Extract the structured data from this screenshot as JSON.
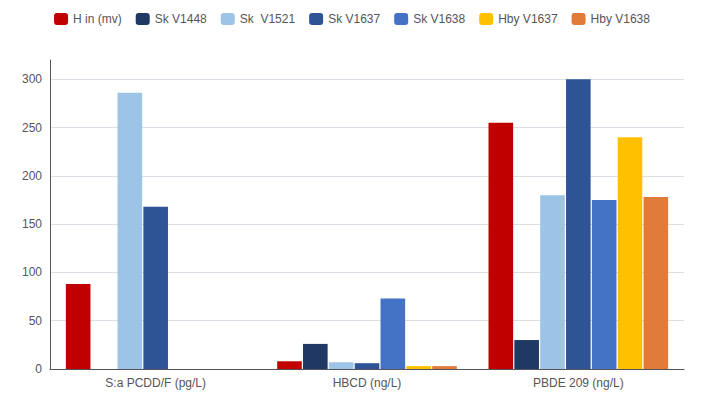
{
  "chart_data": {
    "type": "bar",
    "categories": [
      "S:a PCDD/F (pg/L)",
      "HBCD (ng/L)",
      "PBDE 209 (ng/L)"
    ],
    "series": [
      {
        "name": "H in (mv)",
        "color": "#C00000",
        "values": [
          88,
          8,
          255
        ]
      },
      {
        "name": "Sk V1448",
        "color": "#1F3864",
        "values": [
          0,
          26,
          30
        ]
      },
      {
        "name": "Sk  V1521",
        "color": "#9DC3E6",
        "values": [
          286,
          7,
          180
        ]
      },
      {
        "name": "Sk V1637",
        "color": "#2F5496",
        "values": [
          168,
          6,
          300
        ]
      },
      {
        "name": "Sk V1638",
        "color": "#4472C4",
        "values": [
          0,
          73,
          175
        ]
      },
      {
        "name": "Hby V1637",
        "color": "#FFC000",
        "values": [
          0,
          3,
          240
        ]
      },
      {
        "name": "Hby V1638",
        "color": "#E07B39",
        "values": [
          0,
          3,
          178
        ]
      }
    ],
    "ylim": [
      0,
      320
    ],
    "yticks": [
      0,
      50,
      100,
      150,
      200,
      250,
      300
    ],
    "grid": true,
    "legend": "top"
  }
}
